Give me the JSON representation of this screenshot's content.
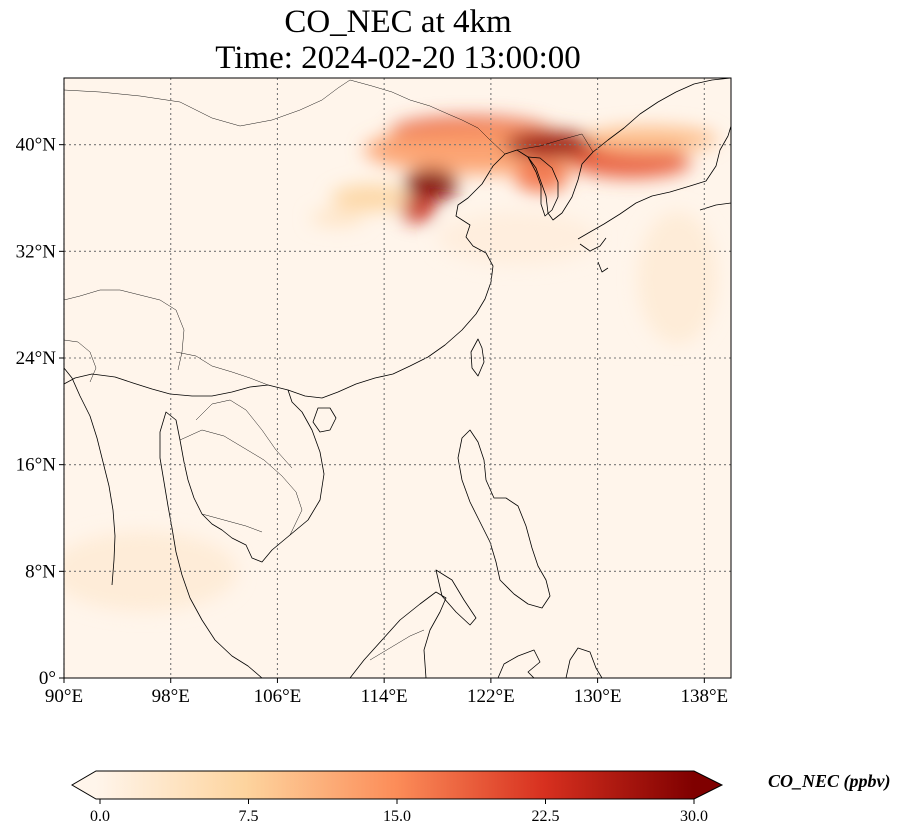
{
  "title": {
    "line1": "CO_NEC at 4km",
    "line2": "Time: 2024-02-20 13:00:00"
  },
  "map": {
    "lon_range": [
      90,
      140
    ],
    "lat_range": [
      0,
      45
    ],
    "lon_ticks": [
      {
        "value": 90,
        "label": "90°E"
      },
      {
        "value": 98,
        "label": "98°E"
      },
      {
        "value": 106,
        "label": "106°E"
      },
      {
        "value": 114,
        "label": "114°E"
      },
      {
        "value": 122,
        "label": "122°E"
      },
      {
        "value": 130,
        "label": "130°E"
      },
      {
        "value": 138,
        "label": "138°E"
      }
    ],
    "lat_ticks": [
      {
        "value": 0,
        "label": "0°"
      },
      {
        "value": 8,
        "label": "8°N"
      },
      {
        "value": 16,
        "label": "16°N"
      },
      {
        "value": 24,
        "label": "24°N"
      },
      {
        "value": 32,
        "label": "32°N"
      },
      {
        "value": 40,
        "label": "40°N"
      }
    ],
    "gridlines": true,
    "plumes": [
      {
        "lon": 120.5,
        "lat": 41.0,
        "rlon": 6.0,
        "rlat": 1.1,
        "value": 20
      },
      {
        "lon": 122.0,
        "lat": 39.6,
        "rlon": 9.5,
        "rlat": 1.8,
        "value": 13
      },
      {
        "lon": 117.5,
        "lat": 37.0,
        "rlon": 2.0,
        "rlat": 1.2,
        "value": 30
      },
      {
        "lon": 116.5,
        "lat": 35.2,
        "rlon": 1.3,
        "rlat": 1.0,
        "value": 24
      },
      {
        "lon": 126.5,
        "lat": 40.0,
        "rlon": 3.5,
        "rlat": 1.0,
        "value": 28
      },
      {
        "lon": 125.8,
        "lat": 37.6,
        "rlon": 2.0,
        "rlat": 1.2,
        "value": 17
      },
      {
        "lon": 132.5,
        "lat": 38.7,
        "rlon": 4.5,
        "rlat": 1.2,
        "value": 19
      },
      {
        "lon": 134.0,
        "lat": 40.4,
        "rlon": 5.0,
        "rlat": 1.0,
        "value": 10
      },
      {
        "lon": 113.0,
        "lat": 36.0,
        "rlon": 3.0,
        "rlat": 1.0,
        "value": 7
      },
      {
        "lon": 110.5,
        "lat": 34.5,
        "rlon": 2.0,
        "rlat": 0.6,
        "value": 4
      },
      {
        "lon": 136.0,
        "lat": 30.0,
        "rlon": 3.0,
        "rlat": 5.0,
        "value": 2
      },
      {
        "lon": 96.0,
        "lat": 8.0,
        "rlon": 7.0,
        "rlat": 3.0,
        "value": 2
      },
      {
        "lon": 124.0,
        "lat": 33.0,
        "rlon": 6.0,
        "rlat": 2.0,
        "value": 1.5
      }
    ]
  },
  "colorbar": {
    "label": "CO_NEC (ppbv)",
    "min": 0,
    "max": 30,
    "ticks": [
      {
        "value": 0,
        "label": "0.0"
      },
      {
        "value": 7.5,
        "label": "7.5"
      },
      {
        "value": 15,
        "label": "15.0"
      },
      {
        "value": 22.5,
        "label": "22.5"
      },
      {
        "value": 30,
        "label": "30.0"
      }
    ],
    "colors": {
      "low": "#fff5eb",
      "light": "#fdd49e",
      "mid": "#fc8d59",
      "high": "#d7301f",
      "top": "#7f0000"
    }
  }
}
